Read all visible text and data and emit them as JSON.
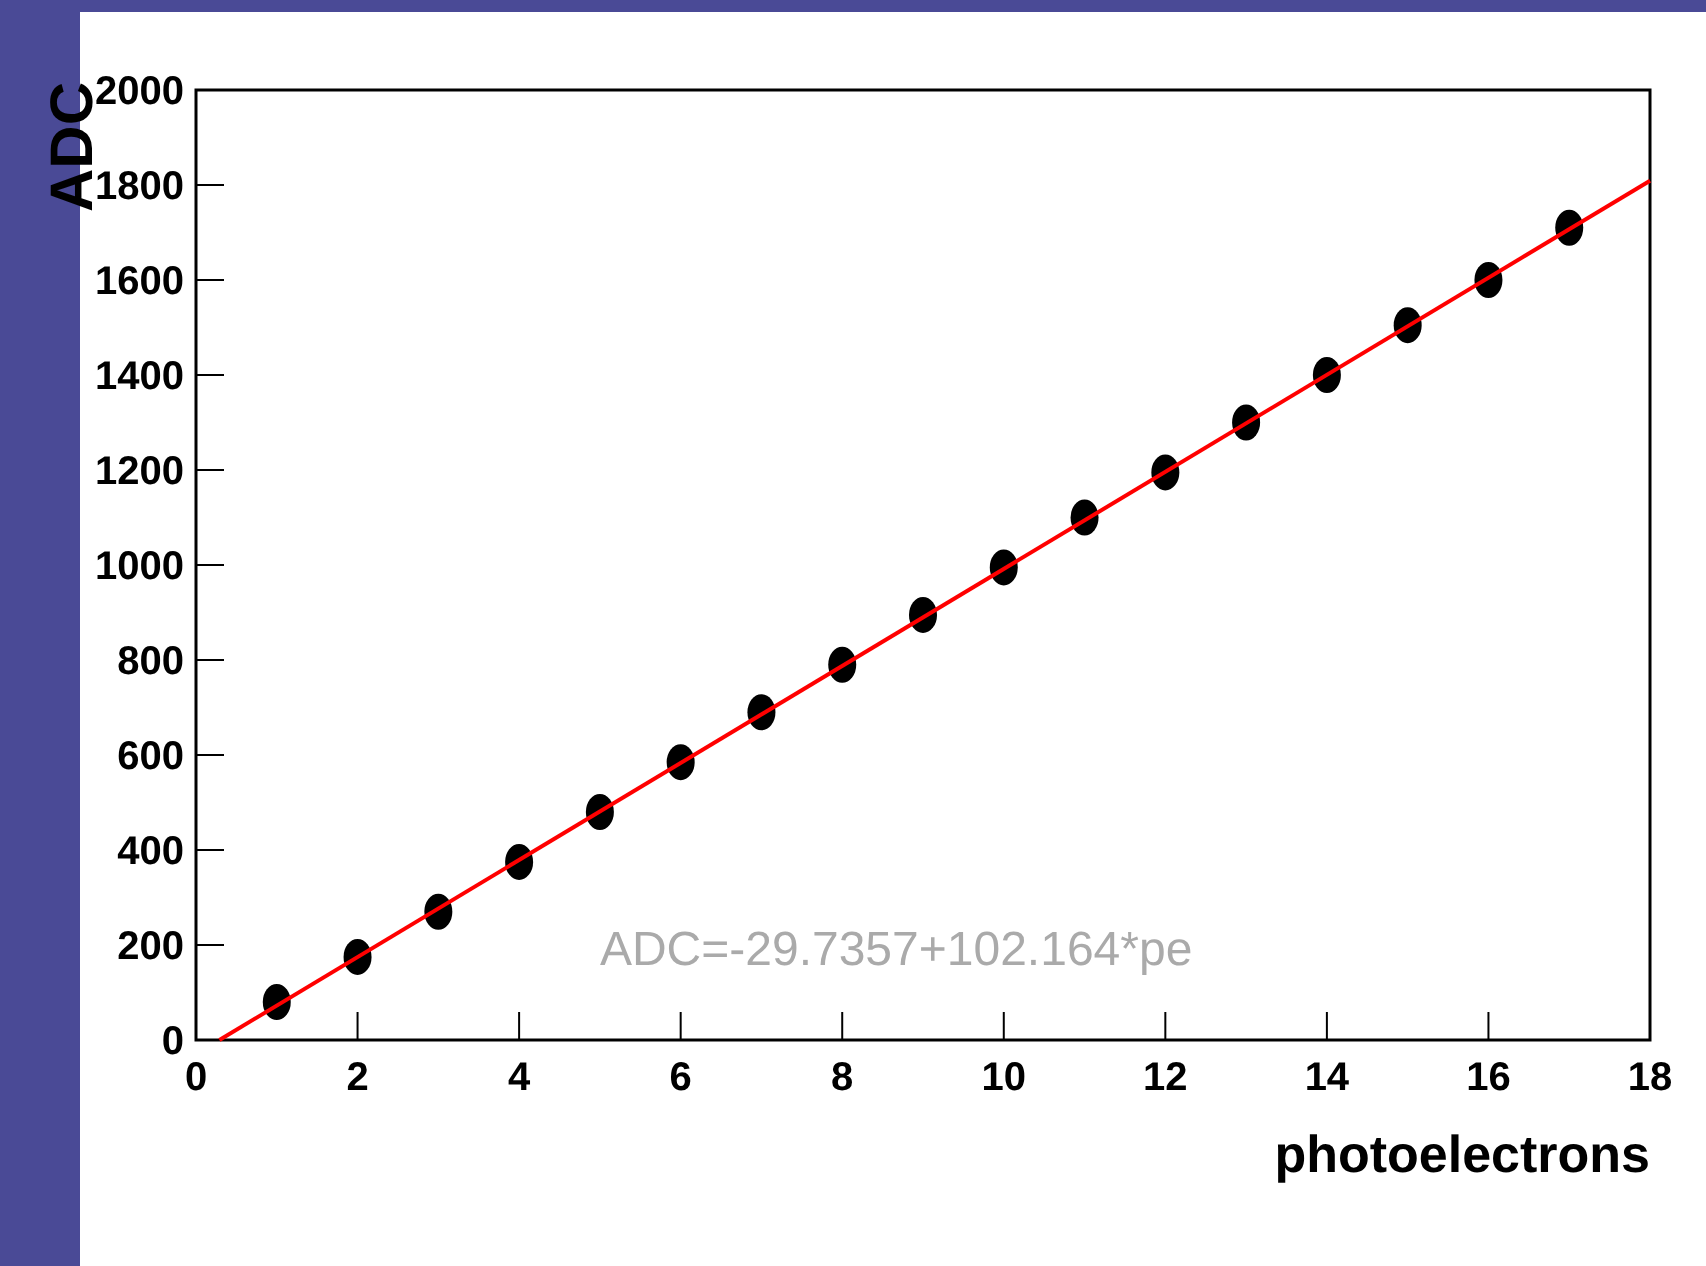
{
  "chart_data": {
    "type": "scatter",
    "xlabel": "photoelectrons",
    "ylabel": "ADC",
    "x": [
      1,
      2,
      3,
      4,
      5,
      6,
      7,
      8,
      9,
      10,
      11,
      12,
      13,
      14,
      15,
      16,
      17
    ],
    "series": [
      {
        "color": "#000000",
        "marker": "circle",
        "values": [
          80,
          175,
          270,
          375,
          480,
          585,
          690,
          790,
          895,
          995,
          1100,
          1195,
          1300,
          1400,
          1505,
          1600,
          1710
        ]
      },
      {
        "type": "line",
        "color": "#ff0000",
        "marker": "none",
        "line_style": "solid",
        "x": [
          0.29,
          18
        ],
        "values": [
          0,
          1809
        ]
      }
    ],
    "xlim": [
      0,
      18
    ],
    "xticks": [
      0,
      2,
      4,
      6,
      8,
      10,
      12,
      14,
      16,
      18
    ],
    "ylim": [
      0,
      2000
    ],
    "yticks": [
      0,
      200,
      400,
      600,
      800,
      1000,
      1200,
      1400,
      1600,
      1800,
      2000
    ],
    "grid": false,
    "annotations": [
      "ADC=-29.7357+102.164*pe"
    ]
  }
}
